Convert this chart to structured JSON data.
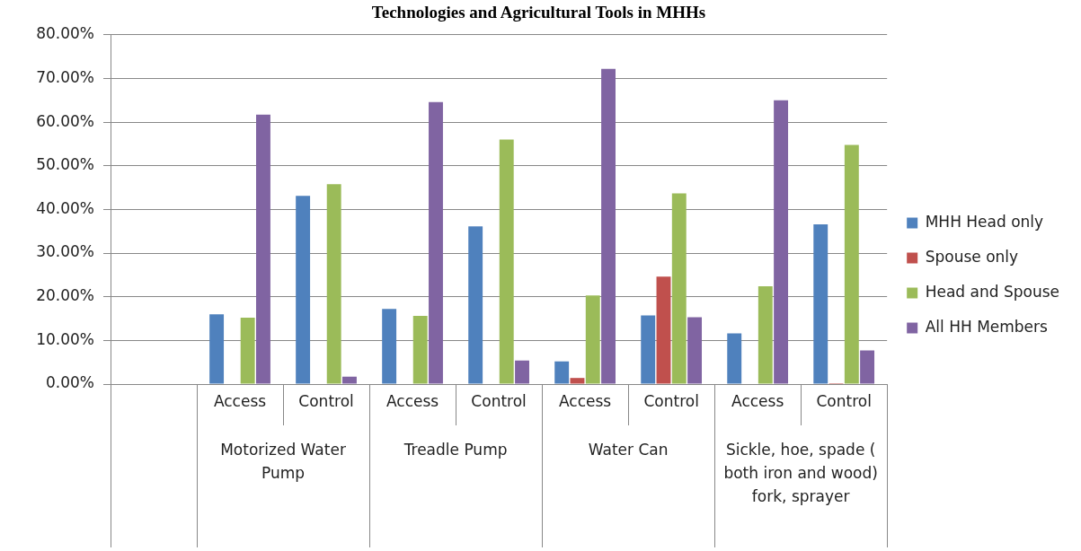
{
  "chart_data": {
    "type": "bar",
    "title": "Technologies and Agricultural Tools in MHHs",
    "categories": [
      null,
      "Access",
      "Control",
      "Access",
      "Control",
      "Access",
      "Control",
      "Access",
      "Control"
    ],
    "annotations": [
      "Motorized Water Pump",
      "Treadle Pump",
      "Water Can",
      "Sickle, hoe, spade ( both iron and wood) fork, sprayer"
    ],
    "series": [
      {
        "name": "MHH Head only",
        "color": "#4f81bd",
        "values": [
          null,
          16.0,
          43.1,
          17.2,
          36.1,
          5.2,
          15.7,
          11.6,
          36.6
        ]
      },
      {
        "name": "Spouse only",
        "color": "#c0504d",
        "values": [
          null,
          0,
          0,
          0,
          0,
          1.4,
          24.6,
          0,
          0.2
        ]
      },
      {
        "name": "Head and Spouse",
        "color": "#9bbb59",
        "values": [
          null,
          15.2,
          45.8,
          15.6,
          56.0,
          20.3,
          43.7,
          22.4,
          54.8
        ]
      },
      {
        "name": "All HH Members",
        "color": "#8064a2",
        "values": [
          null,
          61.7,
          1.7,
          64.6,
          5.4,
          72.2,
          15.3,
          65.0,
          7.7
        ]
      }
    ],
    "ylim": [
      0,
      80
    ],
    "yticks": [
      {
        "value": 0,
        "label": "0.00%"
      },
      {
        "value": 10,
        "label": "10.00%"
      },
      {
        "value": 20,
        "label": "20.00%"
      },
      {
        "value": 30,
        "label": "30.00%"
      },
      {
        "value": 40,
        "label": "40.00%"
      },
      {
        "value": 50,
        "label": "50.00%"
      },
      {
        "value": 60,
        "label": "60.00%"
      },
      {
        "value": 70,
        "label": "70.00%"
      },
      {
        "value": 80,
        "label": "80.00%"
      }
    ],
    "grid": "y",
    "legend": "right"
  }
}
